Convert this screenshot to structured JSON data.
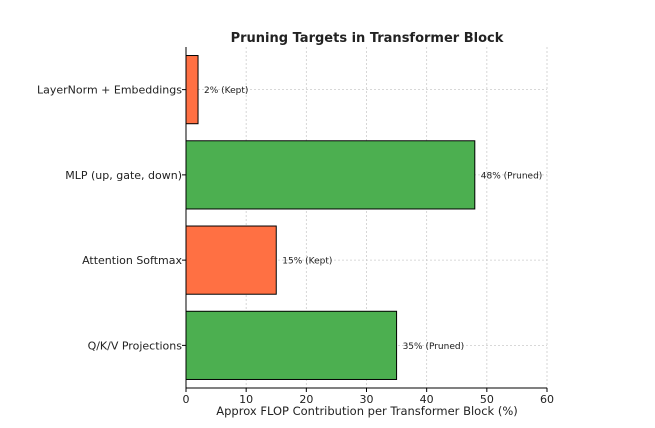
{
  "chart_data": {
    "type": "bar",
    "orientation": "horizontal",
    "title": "Pruning Targets in Transformer Block",
    "xlabel": "Approx FLOP Contribution per Transformer Block (%)",
    "ylabel": "",
    "xlim": [
      0,
      60
    ],
    "xticks": [
      0,
      10,
      20,
      30,
      40,
      50,
      60
    ],
    "grid": true,
    "categories": [
      "LayerNorm + Embeddings",
      "MLP (up, gate, down)",
      "Attention Softmax",
      "Q/K/V Projections"
    ],
    "values": [
      2,
      48,
      15,
      35
    ],
    "status": [
      "Kept",
      "Pruned",
      "Kept",
      "Pruned"
    ],
    "bar_labels": [
      "2% (Kept)",
      "48% (Pruned)",
      "15% (Kept)",
      "35% (Pruned)"
    ],
    "colors": {
      "Kept": "#FF7043",
      "Pruned": "#4CAF50"
    }
  }
}
